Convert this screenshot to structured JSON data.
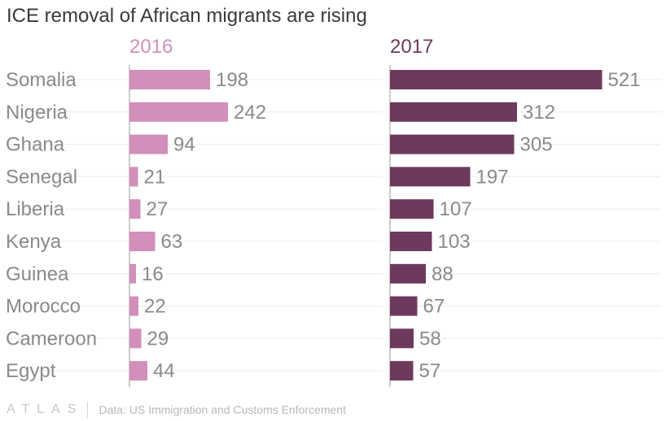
{
  "title": "ICE removal of African migrants are rising",
  "footer": {
    "logo": "ATLAS",
    "source": "Data: US Immigration and Customs Enforcement"
  },
  "colors": {
    "y2016": "#d18fba",
    "y2017": "#6d3a5c",
    "grid": "#ececec",
    "axis": "#9a9a9a",
    "label": "#8a8a8a"
  },
  "chart_data": {
    "type": "bar",
    "title": "ICE removal of African migrants are rising",
    "categories": [
      "Somalia",
      "Nigeria",
      "Ghana",
      "Senegal",
      "Liberia",
      "Kenya",
      "Guinea",
      "Morocco",
      "Cameroon",
      "Egypt"
    ],
    "series": [
      {
        "name": "2016",
        "values": [
          198,
          242,
          94,
          21,
          27,
          63,
          16,
          22,
          29,
          44
        ]
      },
      {
        "name": "2017",
        "values": [
          521,
          312,
          305,
          197,
          107,
          103,
          88,
          67,
          58,
          57
        ]
      }
    ],
    "orientation": "horizontal",
    "layout": "small-multiples",
    "data_labels": true,
    "grid": true
  }
}
